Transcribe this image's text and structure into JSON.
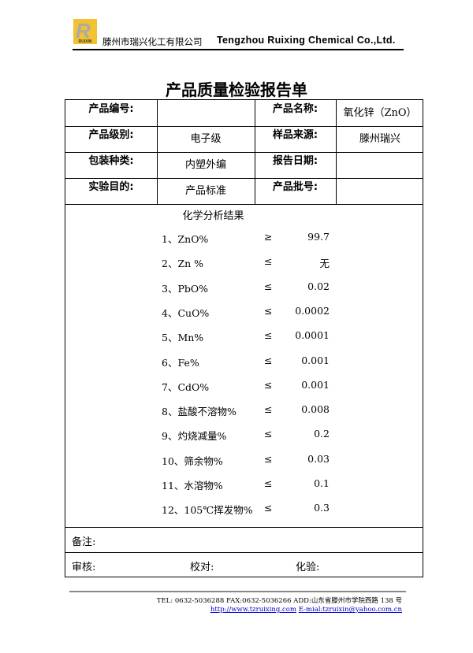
{
  "header": {
    "logo_text": "RUIXIN",
    "company_cn": "滕州市瑞兴化工有限公司",
    "company_en": "Tengzhou Ruixing Chemical Co.,Ltd."
  },
  "title": "产品质量检验报告单",
  "info": [
    [
      "产品编号:",
      "",
      "产品名称:",
      "氧化锌（ZnO）"
    ],
    [
      "产品级别:",
      "电子级",
      "样品来源:",
      "滕州瑞兴"
    ],
    [
      "包装种类:",
      "内塑外编",
      "报告日期:",
      ""
    ],
    [
      "实验目的:",
      "产品标准",
      "产品批号:",
      ""
    ]
  ],
  "results_title": "化学分析结果",
  "results": [
    {
      "item": "1、ZnO%",
      "op": "≥",
      "value": "99.7"
    },
    {
      "item": "2、Zn %",
      "op": "≤",
      "value": "无"
    },
    {
      "item": "3、PbO%",
      "op": "≤",
      "value": "0.02"
    },
    {
      "item": "4、CuO%",
      "op": "≤",
      "value": "0.0002"
    },
    {
      "item": "5、Mn%",
      "op": "≤",
      "value": "0.0001"
    },
    {
      "item": "6、Fe%",
      "op": "≤",
      "value": "0.001"
    },
    {
      "item": "7、CdO%",
      "op": "≤",
      "value": "0.001"
    },
    {
      "item": "8、盐酸不溶物%",
      "op": "≤",
      "value": "0.008"
    },
    {
      "item": "9、灼烧减量%",
      "op": "≤",
      "value": "0.2"
    },
    {
      "item": "10、筛余物%",
      "op": "≤",
      "value": "0.03"
    },
    {
      "item": "11、水溶物%",
      "op": "≤",
      "value": "0.1"
    },
    {
      "item": "12、105℃挥发物%",
      "op": "≤",
      "value": "0.3"
    }
  ],
  "remarks_label": "备注:",
  "sign": {
    "review": "审核:",
    "check": "校对:",
    "test": "化验:"
  },
  "footer": {
    "line1": "TEL: 0632-5036288    FAX:0632-5036266 ADD:山东省滕州市学院西路 138 号",
    "url": "http://www.tzruixing.com",
    "email": "E-mial:tzruixin@yahoo.com.cn"
  }
}
